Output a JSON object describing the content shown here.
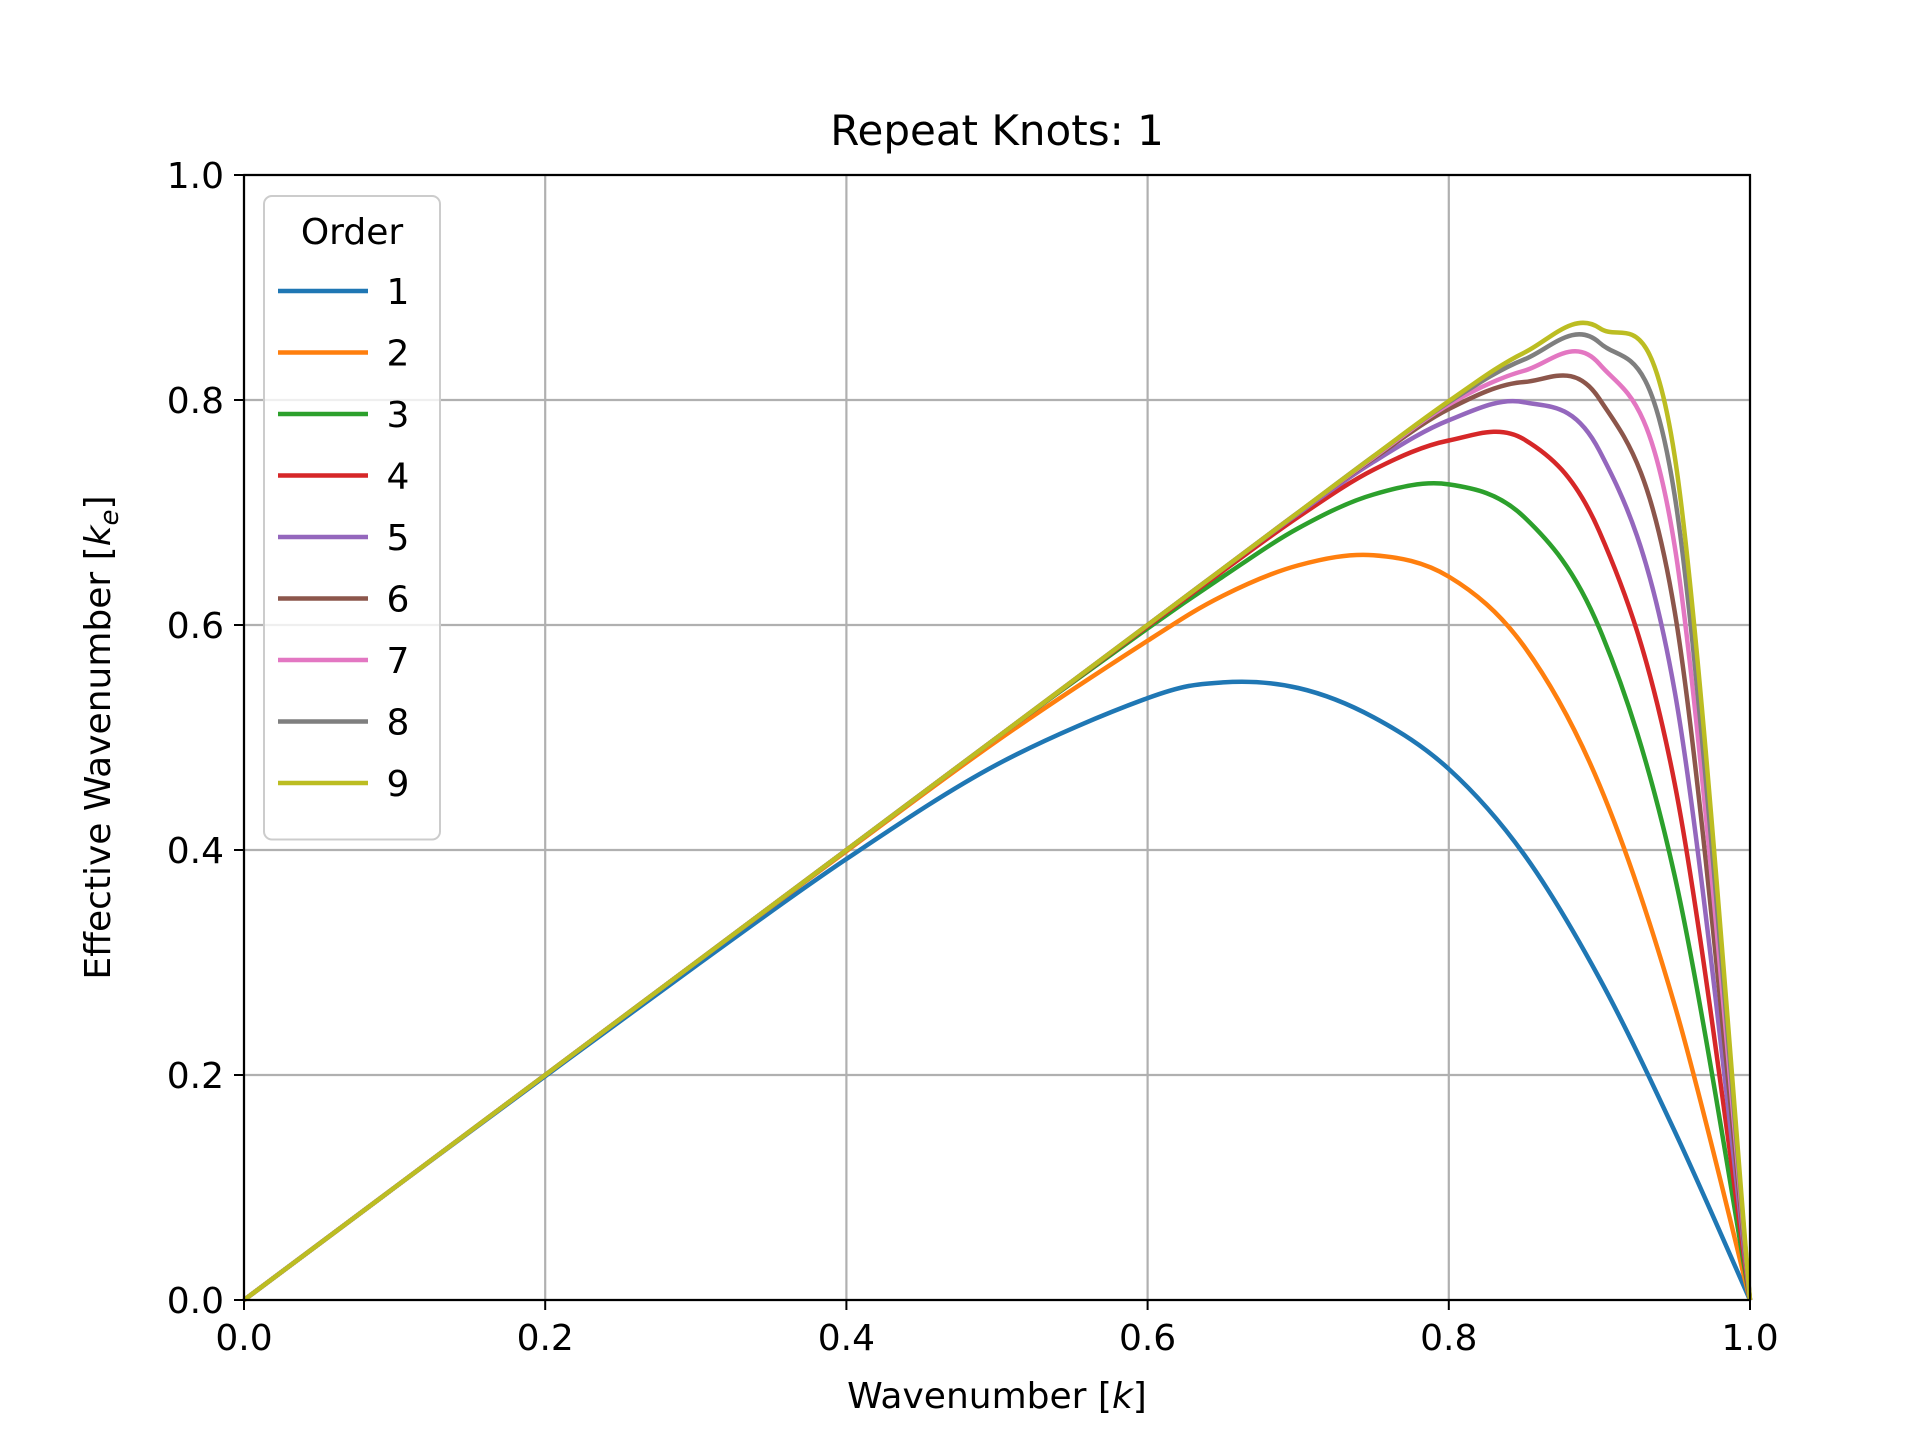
{
  "chart_data": {
    "type": "line",
    "title": "Repeat Knots: 1",
    "xlabel": "Wavenumber [k]",
    "ylabel": "Effective Wavenumber [k_e]",
    "xlim": [
      0.0,
      1.0
    ],
    "ylim": [
      0.0,
      1.0
    ],
    "xticks": [
      "0.0",
      "0.2",
      "0.4",
      "0.6",
      "0.8",
      "1.0"
    ],
    "yticks": [
      "0.0",
      "0.2",
      "0.4",
      "0.6",
      "0.8",
      "1.0"
    ],
    "grid": true,
    "legend": {
      "title": "Order",
      "placement": "upper-left"
    },
    "x": [
      0.0,
      0.1,
      0.2,
      0.3,
      0.4,
      0.5,
      0.6,
      0.65,
      0.7,
      0.75,
      0.8,
      0.85,
      0.9,
      0.95,
      1.0
    ],
    "series": [
      {
        "name": "1",
        "color": "#1f77b4",
        "values": [
          0.0,
          0.1,
          0.199,
          0.297,
          0.392,
          0.476,
          0.535,
          0.549,
          0.544,
          0.518,
          0.472,
          0.396,
          0.286,
          0.15,
          0.0
        ]
      },
      {
        "name": "2",
        "color": "#ff7f0e",
        "values": [
          0.0,
          0.1,
          0.2,
          0.3,
          0.399,
          0.497,
          0.586,
          0.626,
          0.653,
          0.662,
          0.643,
          0.581,
          0.458,
          0.262,
          0.0
        ]
      },
      {
        "name": "3",
        "color": "#2ca02c",
        "values": [
          0.0,
          0.1,
          0.2,
          0.3,
          0.4,
          0.5,
          0.597,
          0.643,
          0.686,
          0.716,
          0.725,
          0.696,
          0.597,
          0.377,
          0.0
        ]
      },
      {
        "name": "4",
        "color": "#d62728",
        "values": [
          0.0,
          0.1,
          0.2,
          0.3,
          0.4,
          0.5,
          0.599,
          0.648,
          0.696,
          0.738,
          0.764,
          0.765,
          0.683,
          0.459,
          0.0
        ]
      },
      {
        "name": "5",
        "color": "#9467bd",
        "values": [
          0.0,
          0.1,
          0.2,
          0.3,
          0.4,
          0.5,
          0.6,
          0.65,
          0.699,
          0.745,
          0.782,
          0.798,
          0.755,
          0.541,
          0.0
        ]
      },
      {
        "name": "6",
        "color": "#8c564b",
        "values": [
          0.0,
          0.1,
          0.2,
          0.3,
          0.4,
          0.5,
          0.6,
          0.65,
          0.7,
          0.748,
          0.792,
          0.816,
          0.801,
          0.612,
          0.0
        ]
      },
      {
        "name": "7",
        "color": "#e377c2",
        "values": [
          0.0,
          0.1,
          0.2,
          0.3,
          0.4,
          0.5,
          0.6,
          0.65,
          0.7,
          0.749,
          0.796,
          0.826,
          0.832,
          0.67,
          0.0
        ]
      },
      {
        "name": "8",
        "color": "#7f7f7f",
        "values": [
          0.0,
          0.1,
          0.2,
          0.3,
          0.4,
          0.5,
          0.6,
          0.65,
          0.7,
          0.75,
          0.798,
          0.836,
          0.851,
          0.715,
          0.0
        ]
      },
      {
        "name": "9",
        "color": "#bcbd22",
        "values": [
          0.0,
          0.1,
          0.2,
          0.3,
          0.4,
          0.5,
          0.6,
          0.65,
          0.7,
          0.75,
          0.799,
          0.842,
          0.864,
          0.75,
          0.0
        ]
      }
    ]
  }
}
